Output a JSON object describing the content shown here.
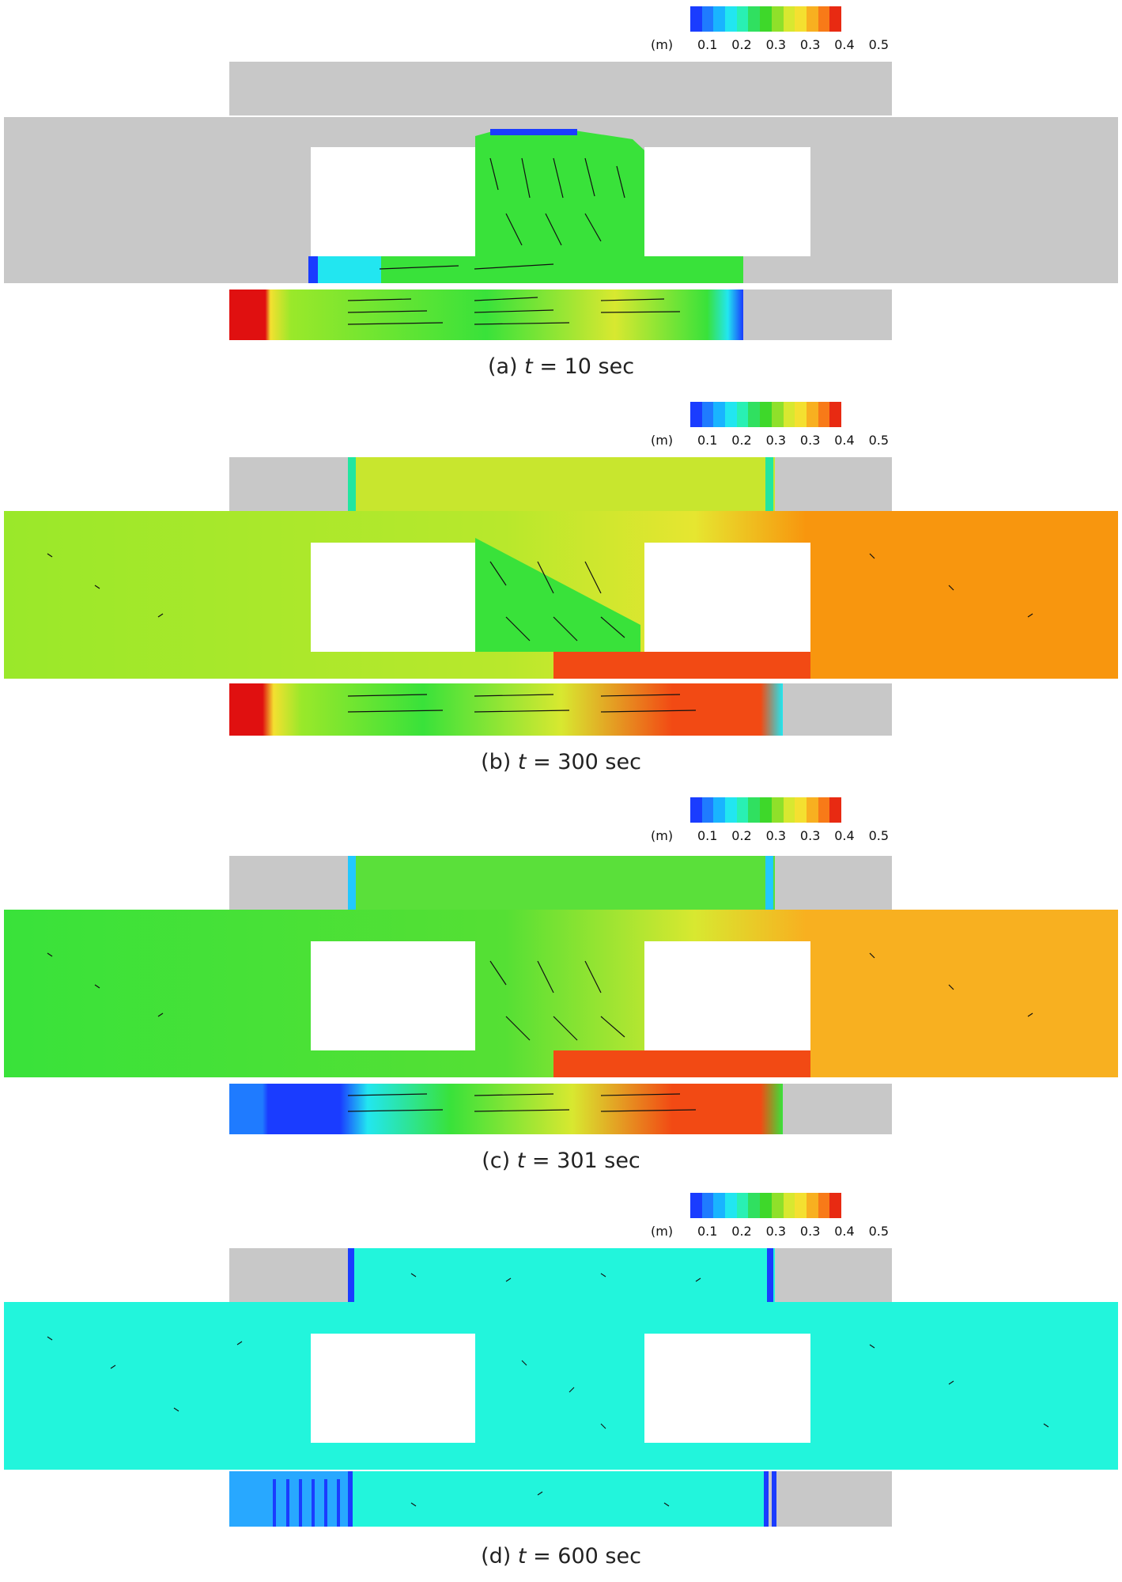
{
  "legend": {
    "unit": "(m)",
    "ticks": [
      "0.1",
      "0.2",
      "0.3",
      "0.3",
      "0.4",
      "0.5"
    ],
    "colors": [
      "#1a3cff",
      "#1f7bff",
      "#19b4ff",
      "#22e6f0",
      "#29f0b4",
      "#30e060",
      "#3ed82a",
      "#8fe02a",
      "#d8e830",
      "#f4e030",
      "#f8b020",
      "#f87a18",
      "#e82a12"
    ]
  },
  "panels": [
    {
      "label": "(a)",
      "t_symbol": "t",
      "equals": "=",
      "time": "10 sec"
    },
    {
      "label": "(b)",
      "t_symbol": "t",
      "equals": "=",
      "time": "300 sec"
    },
    {
      "label": "(c)",
      "t_symbol": "t",
      "equals": "=",
      "time": "301 sec"
    },
    {
      "label": "(d)",
      "t_symbol": "t",
      "equals": "=",
      "time": "600 sec"
    }
  ],
  "colors": {
    "dry": "#c8c8c8",
    "green": "#39e23a",
    "lime": "#9ae82a",
    "yellow": "#e6e630",
    "orange": "#f8960e",
    "red_orange": "#f24a14",
    "red": "#e01010",
    "cyan": "#22f5dc",
    "blue": "#1a3cff",
    "lightblue": "#28a8ff"
  }
}
